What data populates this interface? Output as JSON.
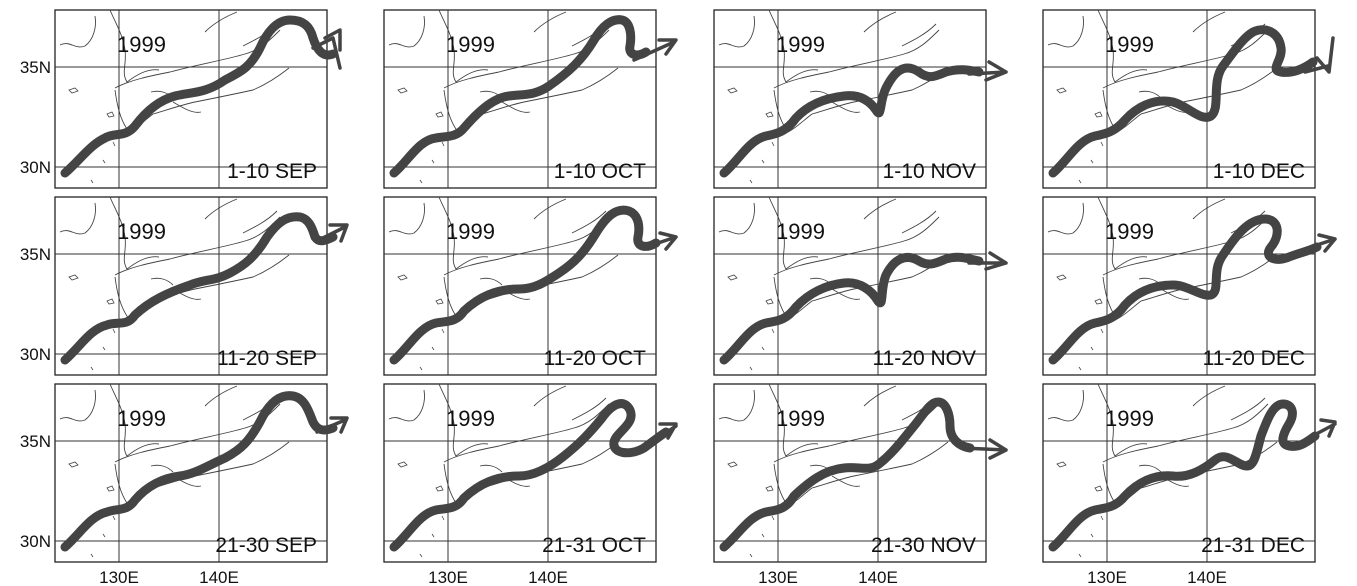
{
  "figure": {
    "year_label": "1999",
    "lat_axis_labels": [
      "35N",
      "30N"
    ],
    "lon_axis_labels": [
      "130E",
      "140E"
    ],
    "months": [
      "SEP",
      "OCT",
      "NOV",
      "DEC"
    ],
    "panels": [
      {
        "label": "1-10 SEP"
      },
      {
        "label": "1-10 OCT"
      },
      {
        "label": "1-10 NOV"
      },
      {
        "label": "1-10 DEC"
      },
      {
        "label": "11-20 SEP"
      },
      {
        "label": "11-20 OCT"
      },
      {
        "label": "11-20 NOV"
      },
      {
        "label": "11-20 DEC"
      },
      {
        "label": "21-30 SEP"
      },
      {
        "label": "21-31 OCT"
      },
      {
        "label": "21-30 NOV"
      },
      {
        "label": "21-31 DEC"
      }
    ],
    "axis_ticks": {
      "lat_deg": [
        35,
        30
      ],
      "lon_deg": [
        130,
        140
      ]
    },
    "colors": {
      "path": "#444444",
      "frame": "#222222",
      "background": "#ffffff"
    }
  }
}
